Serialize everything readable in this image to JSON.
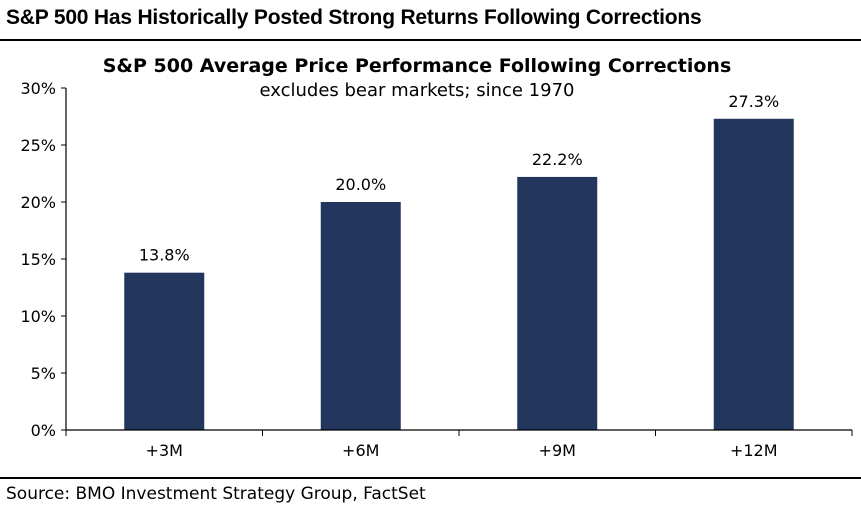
{
  "header": {
    "headline": "S&P 500 Has Historically Posted Strong Returns Following Corrections"
  },
  "footer": {
    "source": "Source: BMO Investment Strategy Group, FactSet"
  },
  "colors": {
    "bar": "#22365e",
    "axis": "#000000"
  },
  "chart_data": {
    "type": "bar",
    "title": "S&P 500 Average Price Performance Following Corrections",
    "subtitle": "excludes bear markets; since 1970",
    "categories": [
      "+3M",
      "+6M",
      "+9M",
      "+12M"
    ],
    "values": [
      13.8,
      20.0,
      22.2,
      27.3
    ],
    "data_labels": [
      "13.8%",
      "20.0%",
      "22.2%",
      "27.3%"
    ],
    "ylim": [
      0,
      30
    ],
    "yticks": [
      0,
      5,
      10,
      15,
      20,
      25,
      30
    ],
    "ytick_labels": [
      "0%",
      "5%",
      "10%",
      "15%",
      "20%",
      "25%",
      "30%"
    ],
    "xlabel": "",
    "ylabel": "",
    "grid": false,
    "legend": "none"
  }
}
